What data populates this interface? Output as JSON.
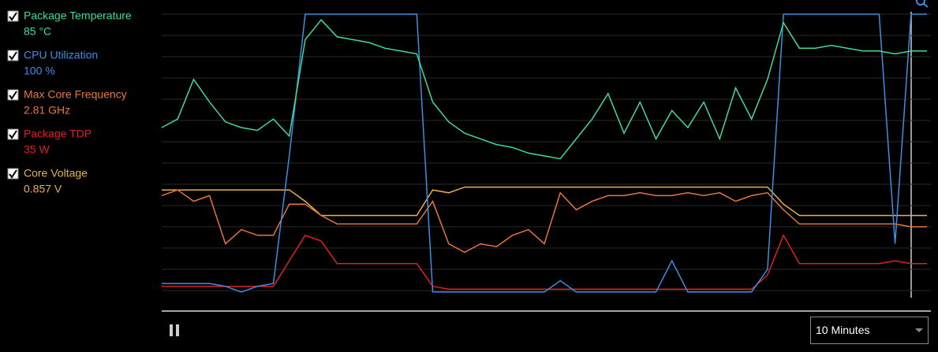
{
  "chart_data": {
    "type": "line",
    "ylim": [
      0,
      100
    ],
    "grid": true,
    "series": [
      {
        "name": "Package Temperature",
        "reading": "85 °C",
        "color": "#3ddc97",
        "values": [
          60,
          63,
          77,
          69,
          62,
          60,
          59,
          63,
          57,
          91,
          98,
          92,
          91,
          90,
          88,
          87,
          86,
          69,
          62,
          58,
          56,
          54,
          53,
          51,
          50,
          49,
          56,
          63,
          72,
          58,
          69,
          56,
          66,
          60,
          69,
          56,
          74,
          63,
          77,
          97,
          88,
          88,
          89,
          88,
          87,
          87,
          86,
          87,
          87
        ]
      },
      {
        "name": "CPU Utilization",
        "reading": "100 %",
        "color": "#3a8fe6",
        "values": [
          5,
          5,
          5,
          5,
          4,
          2,
          4,
          5,
          50,
          100,
          100,
          100,
          100,
          100,
          100,
          100,
          100,
          2,
          2,
          2,
          2,
          2,
          2,
          2,
          2,
          6,
          2,
          2,
          2,
          2,
          2,
          2,
          13,
          2,
          2,
          2,
          2,
          2,
          10,
          100,
          100,
          100,
          100,
          100,
          100,
          100,
          19,
          100,
          100
        ]
      },
      {
        "name": "Max Core Frequency",
        "reading": "2.81 GHz",
        "color": "#e8763a",
        "values": [
          36,
          38,
          34,
          36,
          19,
          24,
          22,
          22,
          33,
          33,
          29,
          26,
          26,
          26,
          26,
          26,
          26,
          34,
          19,
          16,
          19,
          18,
          22,
          24,
          19,
          37,
          31,
          34,
          36,
          36,
          37,
          36,
          36,
          37,
          36,
          37,
          34,
          36,
          37,
          31,
          26,
          26,
          26,
          26,
          26,
          26,
          26,
          25,
          25
        ]
      },
      {
        "name": "Package TDP",
        "reading": "35 W",
        "color": "#e02020",
        "values": [
          4,
          4,
          4,
          4,
          4,
          4,
          4,
          4,
          13,
          22,
          20,
          12,
          12,
          12,
          12,
          12,
          12,
          4,
          3,
          3,
          3,
          3,
          3,
          3,
          3,
          3,
          3,
          3,
          3,
          3,
          3,
          3,
          3,
          3,
          3,
          3,
          3,
          3,
          8,
          22,
          12,
          12,
          12,
          12,
          12,
          12,
          13,
          12,
          12
        ]
      },
      {
        "name": "Core Voltage",
        "reading": "0.857 V",
        "color": "#e8b04a",
        "values": [
          38,
          38,
          38,
          38,
          38,
          38,
          38,
          38,
          38,
          34,
          29,
          29,
          29,
          29,
          29,
          29,
          29,
          38,
          37,
          39,
          39,
          39,
          39,
          39,
          39,
          39,
          39,
          39,
          39,
          39,
          39,
          39,
          39,
          39,
          39,
          39,
          39,
          39,
          39,
          33,
          29,
          29,
          29,
          29,
          29,
          29,
          29,
          29,
          29
        ]
      }
    ]
  },
  "controls": {
    "time_range": "10 Minutes"
  }
}
